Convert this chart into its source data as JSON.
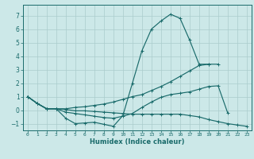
{
  "xlabel": "Humidex (Indice chaleur)",
  "bg_color": "#cce8e8",
  "grid_color": "#aacccc",
  "line_color": "#1a6b6b",
  "spine_color": "#1a6b6b",
  "xlim": [
    -0.5,
    23.5
  ],
  "ylim": [
    -1.5,
    7.8
  ],
  "yticks": [
    -1,
    0,
    1,
    2,
    3,
    4,
    5,
    6,
    7
  ],
  "xticks": [
    0,
    1,
    2,
    3,
    4,
    5,
    6,
    7,
    8,
    9,
    10,
    11,
    12,
    13,
    14,
    15,
    16,
    17,
    18,
    19,
    20,
    21,
    22,
    23
  ],
  "lines": [
    {
      "x": [
        0,
        1,
        2,
        3,
        4,
        5,
        6,
        7,
        8,
        9,
        10,
        11,
        12,
        13,
        14,
        15,
        16,
        17,
        18,
        19,
        20
      ],
      "y": [
        1.0,
        0.5,
        0.1,
        0.1,
        -0.6,
        -1.0,
        -0.95,
        -0.9,
        -1.05,
        -1.2,
        -0.4,
        2.0,
        4.4,
        6.0,
        6.6,
        7.1,
        6.8,
        5.2,
        3.4,
        3.4,
        3.4
      ]
    },
    {
      "x": [
        0,
        1,
        2,
        3,
        4,
        5,
        6,
        7,
        8,
        9,
        10,
        11,
        12,
        13,
        14,
        15,
        16,
        17,
        18,
        19,
        20,
        21
      ],
      "y": [
        1.0,
        0.5,
        0.1,
        0.1,
        -0.15,
        -0.25,
        -0.35,
        -0.45,
        -0.55,
        -0.6,
        -0.45,
        -0.25,
        0.2,
        0.6,
        0.95,
        1.15,
        1.25,
        1.35,
        1.55,
        1.75,
        1.8,
        -0.2
      ]
    },
    {
      "x": [
        0,
        1,
        2,
        3,
        4,
        5,
        6,
        7,
        8,
        9,
        10,
        11,
        12,
        13,
        14,
        15,
        16,
        17,
        18,
        19,
        20,
        21,
        22,
        23
      ],
      "y": [
        1.0,
        0.5,
        0.1,
        0.1,
        0.05,
        -0.05,
        -0.05,
        -0.1,
        -0.15,
        -0.2,
        -0.25,
        -0.3,
        -0.3,
        -0.3,
        -0.3,
        -0.3,
        -0.3,
        -0.4,
        -0.5,
        -0.7,
        -0.85,
        -1.0,
        -1.1,
        -1.2
      ]
    },
    {
      "x": [
        0,
        1,
        2,
        3,
        4,
        5,
        6,
        7,
        8,
        9,
        10,
        11,
        12,
        13,
        14,
        15,
        16,
        17,
        18,
        19
      ],
      "y": [
        1.0,
        0.5,
        0.1,
        0.1,
        0.1,
        0.2,
        0.25,
        0.35,
        0.45,
        0.6,
        0.8,
        1.0,
        1.15,
        1.45,
        1.75,
        2.1,
        2.5,
        2.9,
        3.3,
        3.4
      ]
    }
  ]
}
